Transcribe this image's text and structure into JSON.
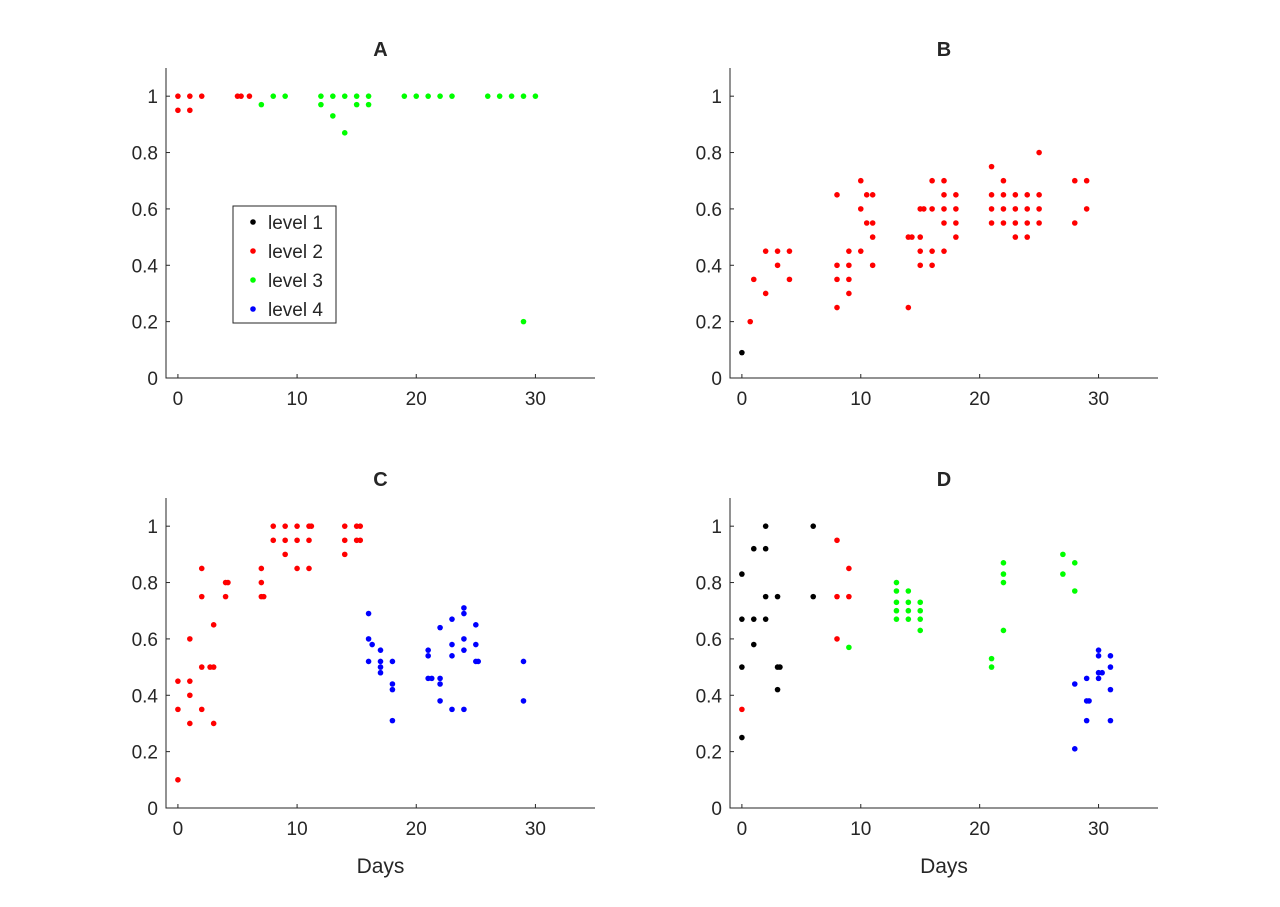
{
  "legend": {
    "entries": [
      {
        "label": "level 1",
        "color": "#000000"
      },
      {
        "label": "level 2",
        "color": "#ff0000"
      },
      {
        "label": "level 3",
        "color": "#00ff00"
      },
      {
        "label": "level 4",
        "color": "#0000ff"
      }
    ],
    "location": "inside panel A, middle-left"
  },
  "chart_data": [
    {
      "type": "scatter",
      "title": "A",
      "xlabel": "",
      "ylabel": "",
      "xlim": [
        -1,
        35
      ],
      "ylim": [
        0,
        1.1
      ],
      "xticks": [
        0,
        10,
        20,
        30
      ],
      "yticks": [
        0,
        0.2,
        0.4,
        0.6,
        0.8,
        1
      ],
      "grid": false,
      "series": [
        {
          "level": 2,
          "points": [
            [
              0,
              1
            ],
            [
              0,
              0.95
            ],
            [
              1,
              1
            ],
            [
              1,
              0.95
            ],
            [
              2,
              1
            ],
            [
              5,
              1
            ],
            [
              5.3,
              1
            ],
            [
              6,
              1
            ]
          ]
        },
        {
          "level": 3,
          "points": [
            [
              7,
              0.97
            ],
            [
              8,
              1
            ],
            [
              9,
              1
            ],
            [
              12,
              1
            ],
            [
              12,
              0.97
            ],
            [
              13,
              1
            ],
            [
              13,
              0.93
            ],
            [
              14,
              1
            ],
            [
              14,
              0.87
            ],
            [
              15,
              1
            ],
            [
              15,
              0.97
            ],
            [
              16,
              1
            ],
            [
              16,
              0.97
            ],
            [
              19,
              1
            ],
            [
              20,
              1
            ],
            [
              21,
              1
            ],
            [
              22,
              1
            ],
            [
              23,
              1
            ],
            [
              26,
              1
            ],
            [
              27,
              1
            ],
            [
              28,
              1
            ],
            [
              29,
              1
            ],
            [
              29,
              0.2
            ],
            [
              30,
              1
            ]
          ]
        }
      ]
    },
    {
      "type": "scatter",
      "title": "B",
      "xlabel": "",
      "ylabel": "",
      "xlim": [
        -1,
        35
      ],
      "ylim": [
        0,
        1.1
      ],
      "xticks": [
        0,
        10,
        20,
        30
      ],
      "yticks": [
        0,
        0.2,
        0.4,
        0.6,
        0.8,
        1
      ],
      "grid": false,
      "series": [
        {
          "level": 1,
          "points": [
            [
              0,
              0.09
            ]
          ]
        },
        {
          "level": 2,
          "points": [
            [
              0.7,
              0.2
            ],
            [
              1,
              0.35
            ],
            [
              2,
              0.3
            ],
            [
              2,
              0.45
            ],
            [
              3,
              0.45
            ],
            [
              3,
              0.4
            ],
            [
              4,
              0.45
            ],
            [
              4,
              0.35
            ],
            [
              8,
              0.65
            ],
            [
              8,
              0.4
            ],
            [
              8,
              0.35
            ],
            [
              8,
              0.25
            ],
            [
              9,
              0.45
            ],
            [
              9,
              0.4
            ],
            [
              9,
              0.35
            ],
            [
              9,
              0.3
            ],
            [
              10,
              0.7
            ],
            [
              10,
              0.6
            ],
            [
              10,
              0.45
            ],
            [
              10.5,
              0.65
            ],
            [
              10.5,
              0.55
            ],
            [
              11,
              0.65
            ],
            [
              11,
              0.55
            ],
            [
              11,
              0.5
            ],
            [
              11,
              0.4
            ],
            [
              14,
              0.5
            ],
            [
              14,
              0.25
            ],
            [
              14.3,
              0.5
            ],
            [
              15,
              0.6
            ],
            [
              15,
              0.5
            ],
            [
              15,
              0.45
            ],
            [
              15,
              0.4
            ],
            [
              15.3,
              0.6
            ],
            [
              16,
              0.7
            ],
            [
              16,
              0.6
            ],
            [
              16,
              0.45
            ],
            [
              16,
              0.4
            ],
            [
              17,
              0.7
            ],
            [
              17,
              0.65
            ],
            [
              17,
              0.6
            ],
            [
              17,
              0.55
            ],
            [
              17,
              0.45
            ],
            [
              18,
              0.65
            ],
            [
              18,
              0.6
            ],
            [
              18,
              0.55
            ],
            [
              18,
              0.5
            ],
            [
              21,
              0.75
            ],
            [
              21,
              0.65
            ],
            [
              21,
              0.6
            ],
            [
              21,
              0.55
            ],
            [
              22,
              0.7
            ],
            [
              22,
              0.65
            ],
            [
              22,
              0.6
            ],
            [
              22,
              0.55
            ],
            [
              23,
              0.65
            ],
            [
              23,
              0.6
            ],
            [
              23,
              0.55
            ],
            [
              23,
              0.5
            ],
            [
              24,
              0.65
            ],
            [
              24,
              0.6
            ],
            [
              24,
              0.55
            ],
            [
              24,
              0.5
            ],
            [
              25,
              0.8
            ],
            [
              25,
              0.65
            ],
            [
              25,
              0.6
            ],
            [
              25,
              0.55
            ],
            [
              28,
              0.7
            ],
            [
              28,
              0.55
            ],
            [
              29,
              0.7
            ],
            [
              29,
              0.6
            ]
          ]
        }
      ]
    },
    {
      "type": "scatter",
      "title": "C",
      "xlabel": "Days",
      "ylabel": "",
      "xlim": [
        -1,
        35
      ],
      "ylim": [
        0,
        1.1
      ],
      "xticks": [
        0,
        10,
        20,
        30
      ],
      "yticks": [
        0,
        0.2,
        0.4,
        0.6,
        0.8,
        1
      ],
      "grid": false,
      "series": [
        {
          "level": 2,
          "points": [
            [
              0,
              0.45
            ],
            [
              0,
              0.35
            ],
            [
              0,
              0.1
            ],
            [
              1,
              0.6
            ],
            [
              1,
              0.45
            ],
            [
              1,
              0.4
            ],
            [
              1,
              0.3
            ],
            [
              2,
              0.85
            ],
            [
              2,
              0.75
            ],
            [
              2,
              0.5
            ],
            [
              2,
              0.35
            ],
            [
              3,
              0.65
            ],
            [
              3,
              0.5
            ],
            [
              3,
              0.3
            ],
            [
              2.7,
              0.5
            ],
            [
              4,
              0.8
            ],
            [
              4,
              0.75
            ],
            [
              4.2,
              0.8
            ],
            [
              7,
              0.85
            ],
            [
              7,
              0.8
            ],
            [
              7,
              0.75
            ],
            [
              7.2,
              0.75
            ],
            [
              8,
              1
            ],
            [
              8,
              0.95
            ],
            [
              9,
              1
            ],
            [
              9,
              0.95
            ],
            [
              9,
              0.9
            ],
            [
              10,
              1
            ],
            [
              10,
              0.95
            ],
            [
              10,
              0.85
            ],
            [
              11,
              1
            ],
            [
              11,
              0.95
            ],
            [
              11,
              0.85
            ],
            [
              11.2,
              1
            ],
            [
              14,
              1
            ],
            [
              14,
              0.95
            ],
            [
              14,
              0.9
            ],
            [
              15,
              1
            ],
            [
              15,
              0.95
            ],
            [
              15.3,
              1
            ],
            [
              15.3,
              0.95
            ]
          ]
        },
        {
          "level": 4,
          "points": [
            [
              16,
              0.69
            ],
            [
              16,
              0.6
            ],
            [
              16,
              0.52
            ],
            [
              16.3,
              0.58
            ],
            [
              17,
              0.56
            ],
            [
              17,
              0.52
            ],
            [
              17,
              0.5
            ],
            [
              17,
              0.48
            ],
            [
              18,
              0.52
            ],
            [
              18,
              0.44
            ],
            [
              18,
              0.42
            ],
            [
              18,
              0.31
            ],
            [
              21,
              0.56
            ],
            [
              21,
              0.54
            ],
            [
              21,
              0.46
            ],
            [
              21.3,
              0.46
            ],
            [
              22,
              0.64
            ],
            [
              22,
              0.46
            ],
            [
              22,
              0.44
            ],
            [
              22,
              0.38
            ],
            [
              23,
              0.67
            ],
            [
              23,
              0.58
            ],
            [
              23,
              0.54
            ],
            [
              23,
              0.35
            ],
            [
              24,
              0.71
            ],
            [
              24,
              0.69
            ],
            [
              24,
              0.6
            ],
            [
              24,
              0.56
            ],
            [
              24,
              0.35
            ],
            [
              25,
              0.65
            ],
            [
              25,
              0.58
            ],
            [
              25,
              0.52
            ],
            [
              25.2,
              0.52
            ],
            [
              29,
              0.52
            ],
            [
              29,
              0.38
            ]
          ]
        }
      ]
    },
    {
      "type": "scatter",
      "title": "D",
      "xlabel": "Days",
      "ylabel": "",
      "xlim": [
        -1,
        35
      ],
      "ylim": [
        0,
        1.1
      ],
      "xticks": [
        0,
        10,
        20,
        30
      ],
      "yticks": [
        0,
        0.2,
        0.4,
        0.6,
        0.8,
        1
      ],
      "grid": false,
      "series": [
        {
          "level": 1,
          "points": [
            [
              0,
              0.83
            ],
            [
              0,
              0.67
            ],
            [
              0,
              0.5
            ],
            [
              0,
              0.25
            ],
            [
              1,
              0.92
            ],
            [
              1,
              0.67
            ],
            [
              1,
              0.58
            ],
            [
              2,
              1
            ],
            [
              2,
              0.92
            ],
            [
              2,
              0.75
            ],
            [
              2,
              0.67
            ],
            [
              3,
              0.75
            ],
            [
              3,
              0.5
            ],
            [
              3,
              0.42
            ],
            [
              3.2,
              0.5
            ],
            [
              6,
              1
            ],
            [
              6,
              0.75
            ]
          ]
        },
        {
          "level": 2,
          "points": [
            [
              0,
              0.35
            ],
            [
              8,
              0.95
            ],
            [
              8,
              0.75
            ],
            [
              8,
              0.6
            ],
            [
              9,
              0.85
            ],
            [
              9,
              0.75
            ]
          ]
        },
        {
          "level": 3,
          "points": [
            [
              9,
              0.57
            ],
            [
              13,
              0.8
            ],
            [
              13,
              0.77
            ],
            [
              13,
              0.73
            ],
            [
              13,
              0.7
            ],
            [
              13,
              0.67
            ],
            [
              14,
              0.77
            ],
            [
              14,
              0.73
            ],
            [
              14,
              0.7
            ],
            [
              14,
              0.67
            ],
            [
              15,
              0.73
            ],
            [
              15,
              0.7
            ],
            [
              15,
              0.67
            ],
            [
              15,
              0.63
            ],
            [
              21,
              0.53
            ],
            [
              21,
              0.5
            ],
            [
              22,
              0.87
            ],
            [
              22,
              0.83
            ],
            [
              22,
              0.8
            ],
            [
              22,
              0.63
            ],
            [
              27,
              0.9
            ],
            [
              27,
              0.83
            ],
            [
              28,
              0.87
            ],
            [
              28,
              0.77
            ]
          ]
        },
        {
          "level": 4,
          "points": [
            [
              28,
              0.44
            ],
            [
              28,
              0.21
            ],
            [
              29,
              0.46
            ],
            [
              29,
              0.38
            ],
            [
              29,
              0.31
            ],
            [
              29.2,
              0.38
            ],
            [
              30,
              0.56
            ],
            [
              30,
              0.54
            ],
            [
              30,
              0.48
            ],
            [
              30,
              0.46
            ],
            [
              30.3,
              0.48
            ],
            [
              31,
              0.54
            ],
            [
              31,
              0.5
            ],
            [
              31,
              0.42
            ],
            [
              31,
              0.31
            ]
          ]
        }
      ]
    }
  ]
}
